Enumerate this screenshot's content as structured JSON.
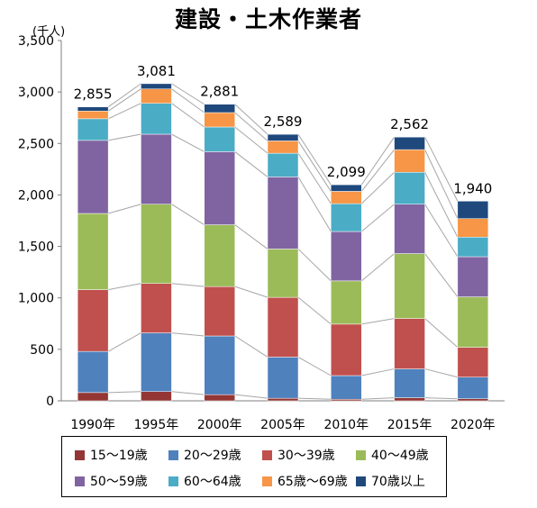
{
  "chart_data": {
    "type": "bar",
    "stacked": true,
    "title": "建設・土木作業者",
    "ylabel": "(千人)",
    "xlabel": "",
    "ylim": [
      0,
      3500
    ],
    "yticks": [
      "0",
      "500",
      "1,000",
      "1,500",
      "2,000",
      "2,500",
      "3,000",
      "3,500"
    ],
    "ytick_values": [
      0,
      500,
      1000,
      1500,
      2000,
      2500,
      3000,
      3500
    ],
    "grid": false,
    "legend_position": "bottom",
    "categories": [
      "1990年",
      "1995年",
      "2000年",
      "2005年",
      "2010年",
      "2015年",
      "2020年"
    ],
    "totals": [
      2855,
      3081,
      2881,
      2589,
      2099,
      2562,
      1940
    ],
    "total_labels": [
      "2,855",
      "3,081",
      "2,881",
      "2,589",
      "2,099",
      "2,562",
      "1,940"
    ],
    "series": [
      {
        "name": "15～19歳",
        "color": "#943634",
        "values": [
          80,
          90,
          60,
          25,
          15,
          30,
          20
        ]
      },
      {
        "name": "20～29歳",
        "color": "#4f81bd",
        "values": [
          400,
          570,
          570,
          400,
          230,
          280,
          210
        ]
      },
      {
        "name": "30～39歳",
        "color": "#c0504d",
        "values": [
          600,
          480,
          480,
          580,
          500,
          490,
          290
        ]
      },
      {
        "name": "40～49歳",
        "color": "#9bbb59",
        "values": [
          740,
          770,
          600,
          470,
          420,
          630,
          490
        ]
      },
      {
        "name": "50～59歳",
        "color": "#8064a2",
        "values": [
          710,
          680,
          710,
          700,
          480,
          480,
          390
        ]
      },
      {
        "name": "60～64歳",
        "color": "#4bacc6",
        "values": [
          210,
          300,
          240,
          230,
          270,
          310,
          190
        ]
      },
      {
        "name": "65歳～69歳",
        "color": "#f79646",
        "values": [
          75,
          140,
          140,
          120,
          120,
          220,
          180
        ]
      },
      {
        "name": "70歳以上",
        "color": "#1f497d",
        "values": [
          40,
          51,
          81,
          64,
          64,
          122,
          170
        ]
      }
    ]
  }
}
